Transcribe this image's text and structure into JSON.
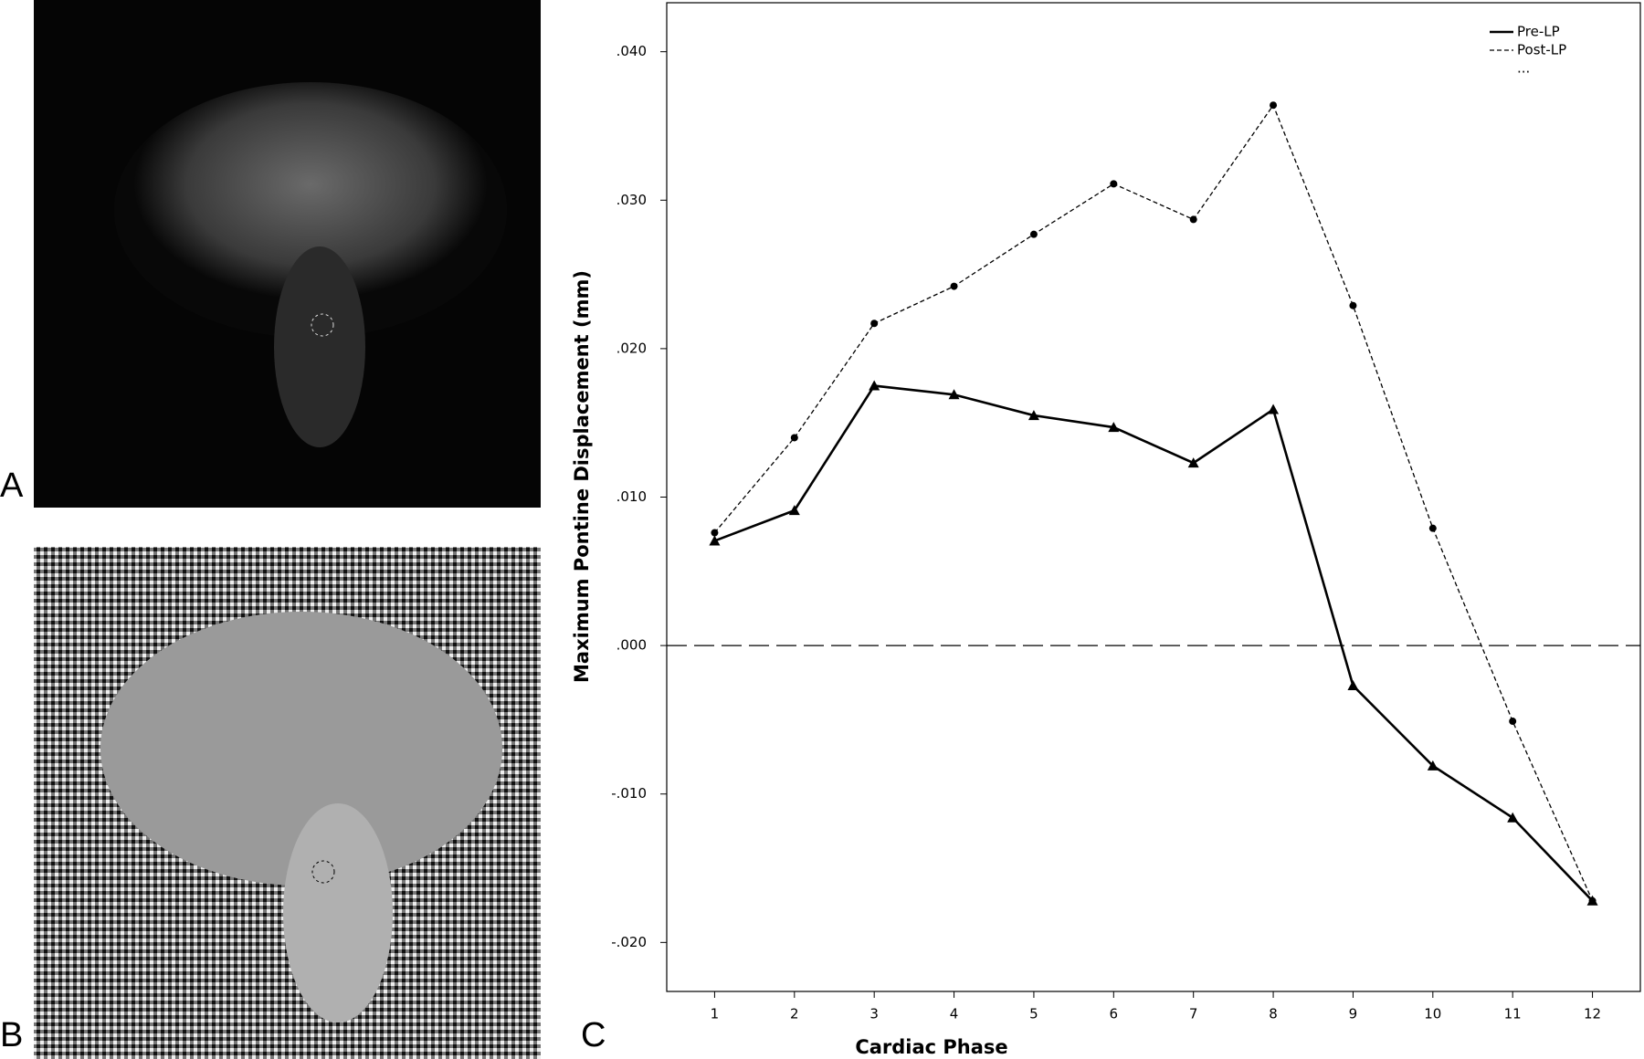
{
  "panel_labels": [
    "A",
    "B",
    "C"
  ],
  "chart_data": {
    "type": "line",
    "x_label": "Cardiac Phase",
    "y_label": "Maximum Pontine Displacement (mm)",
    "x": [
      1,
      2,
      3,
      4,
      5,
      6,
      7,
      8,
      9,
      10,
      11,
      12
    ],
    "xlim": [
      0.4,
      12.6
    ],
    "xticks": [
      1,
      2,
      3,
      4,
      5,
      6,
      7,
      8,
      9,
      10,
      11,
      12
    ],
    "ylim": [
      -0.0233,
      0.0433
    ],
    "yticks": [
      {
        "value": -0.02,
        "label": "-.020"
      },
      {
        "value": -0.01,
        "label": "-.010"
      },
      {
        "value": 0,
        "label": ".000"
      },
      {
        "value": 0.01,
        "label": ".010"
      },
      {
        "value": 0.02,
        "label": ".020"
      },
      {
        "value": 0.03,
        "label": ".030"
      },
      {
        "value": 0.04,
        "label": ".040"
      }
    ],
    "reference_line": 0,
    "legend": "upper right",
    "series": [
      {
        "name": "Pre-LP",
        "color": "#000000",
        "dash": "solid",
        "marker": "triangle",
        "values": [
          0.00705,
          0.0091,
          0.0175,
          0.0169,
          0.0155,
          0.0147,
          0.0123,
          0.0159,
          -0.0027,
          -0.0081,
          -0.0116,
          -0.0172
        ]
      },
      {
        "name": "Post-LP",
        "color": "#000000",
        "dash": "dashed",
        "marker": "circle",
        "values": [
          0.0076,
          0.014,
          0.0217,
          0.0242,
          0.0277,
          0.0311,
          0.0287,
          0.0364,
          0.0229,
          0.0079,
          -0.0051,
          -0.0172
        ]
      },
      {
        "name": "...",
        "values": [
          null,
          null,
          null,
          null,
          null,
          null,
          null,
          null,
          null,
          null,
          null,
          null
        ]
      }
    ]
  }
}
